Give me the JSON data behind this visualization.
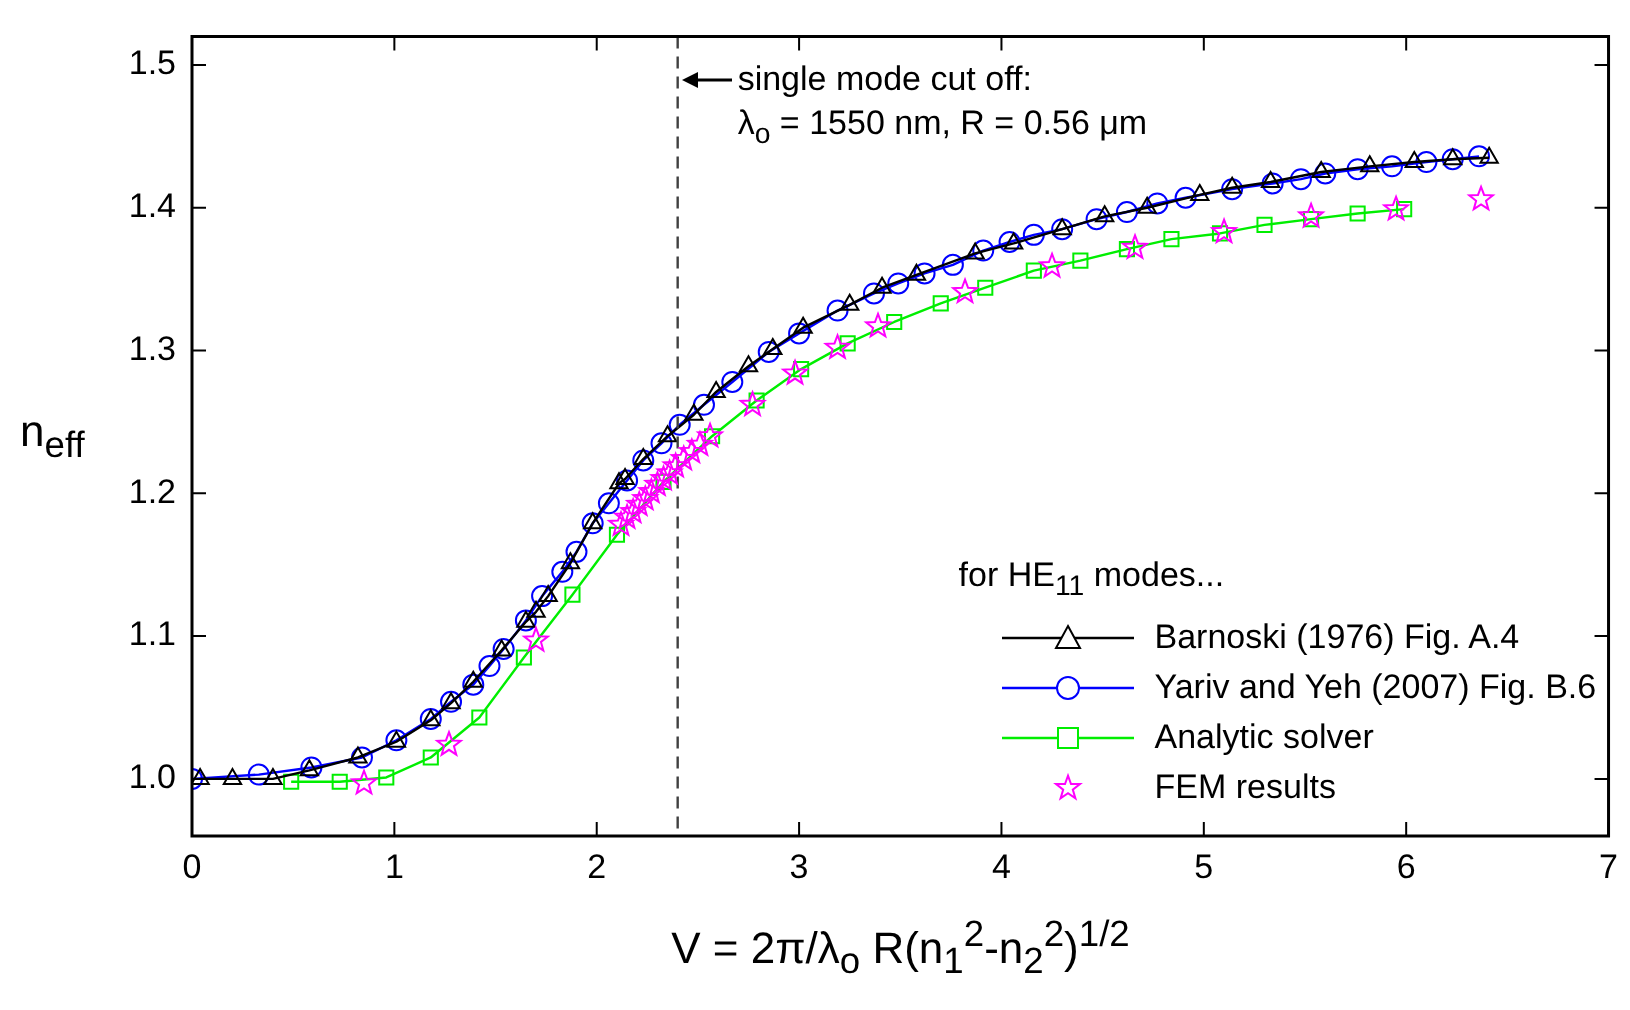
{
  "chart_data": {
    "type": "line",
    "xlabel": "V = 2π/λ$_{o}$ R(n$_{1}$$^{2}$-n$_{2}$$^{2}$)$^{1/2}$",
    "ylabel": "n$_{eff}$",
    "legend_title": "for HE$_{11}$ modes...",
    "xlim": [
      0,
      7
    ],
    "xticks": [
      0,
      1,
      2,
      3,
      4,
      5,
      6,
      7
    ],
    "ylim": [
      0.96,
      1.52
    ],
    "yticks": [
      {
        "value": 1,
        "label": "1.0"
      },
      1.1,
      1.2,
      1.3,
      1.4,
      1.5
    ],
    "grid": false,
    "legend": "bottom right",
    "line_style": "solid",
    "ref_lines": [
      {
        "axis": "x",
        "value": 2.4,
        "color": "#404040",
        "line_style": "dashed"
      }
    ],
    "annotations": [
      {
        "text": "single mode cut off:",
        "x": 2.4,
        "y": 1.49
      },
      {
        "text": "λ$_{o}$ = 1550 nm, R = 0.56 μm",
        "x": 2.4,
        "y": 1.457
      }
    ],
    "series": [
      {
        "name": "Barnoski (1976) Fig. A.4",
        "marker": "triangle",
        "color": "#000000",
        "x": [
          0.04,
          0.2,
          0.4,
          0.58,
          0.82,
          1.01,
          1.18,
          1.28,
          1.39,
          1.53,
          1.65,
          1.7,
          1.76,
          1.87,
          1.98,
          2.11,
          2.14,
          2.23,
          2.35,
          2.48,
          2.59,
          2.75,
          2.87,
          3.02,
          3.25,
          3.41,
          3.58,
          3.87,
          4.06,
          4.3,
          4.51,
          4.72,
          4.98,
          5.14,
          5.33,
          5.58,
          5.82,
          6.04,
          6.23,
          6.41
        ],
        "values": [
          1.0,
          1.0,
          1.0,
          1.006,
          1.015,
          1.026,
          1.041,
          1.053,
          1.068,
          1.09,
          1.11,
          1.117,
          1.128,
          1.151,
          1.179,
          1.207,
          1.21,
          1.224,
          1.24,
          1.255,
          1.271,
          1.289,
          1.301,
          1.316,
          1.332,
          1.344,
          1.353,
          1.368,
          1.375,
          1.385,
          1.394,
          1.4,
          1.409,
          1.414,
          1.418,
          1.425,
          1.429,
          1.432,
          1.434,
          1.435
        ]
      },
      {
        "name": "Yariv and Yeh (2007) Fig. B.6",
        "marker": "circle",
        "color": "#0000ff",
        "x": [
          0,
          0.33,
          0.59,
          0.84,
          1.01,
          1.18,
          1.28,
          1.39,
          1.47,
          1.54,
          1.65,
          1.73,
          1.83,
          1.9,
          1.98,
          2.06,
          2.15,
          2.23,
          2.32,
          2.41,
          2.53,
          2.67,
          2.85,
          3.0,
          3.19,
          3.37,
          3.49,
          3.62,
          3.76,
          3.91,
          4.04,
          4.16,
          4.3,
          4.47,
          4.62,
          4.77,
          4.91,
          5.14,
          5.34,
          5.48,
          5.6,
          5.76,
          5.93,
          6.1,
          6.23,
          6.36
        ],
        "values": [
          1.0,
          1.003,
          1.008,
          1.015,
          1.027,
          1.042,
          1.054,
          1.066,
          1.079,
          1.091,
          1.111,
          1.128,
          1.145,
          1.159,
          1.179,
          1.193,
          1.209,
          1.223,
          1.235,
          1.248,
          1.262,
          1.278,
          1.299,
          1.312,
          1.328,
          1.34,
          1.347,
          1.354,
          1.36,
          1.37,
          1.376,
          1.381,
          1.385,
          1.392,
          1.397,
          1.403,
          1.407,
          1.413,
          1.417,
          1.42,
          1.424,
          1.427,
          1.429,
          1.432,
          1.434,
          1.436
        ]
      },
      {
        "name": "Analytic solver",
        "marker": "square",
        "color": "#00ee00",
        "x": [
          0.49,
          0.73,
          0.96,
          1.18,
          1.42,
          1.64,
          1.88,
          2.1,
          2.33,
          2.57,
          2.79,
          3.01,
          3.24,
          3.47,
          3.7,
          3.92,
          4.16,
          4.39,
          4.62,
          4.84,
          5.08,
          5.3,
          5.53,
          5.76,
          5.99
        ],
        "values": [
          0.998,
          0.998,
          1.001,
          1.015,
          1.043,
          1.085,
          1.129,
          1.171,
          1.208,
          1.24,
          1.265,
          1.287,
          1.305,
          1.32,
          1.333,
          1.344,
          1.356,
          1.363,
          1.371,
          1.378,
          1.382,
          1.388,
          1.392,
          1.396,
          1.399
        ]
      },
      {
        "name": "FEM results",
        "type": "scatter",
        "marker": "star",
        "color": "#ff00ff",
        "x": [
          0.85,
          1.27,
          1.7,
          2.12,
          2.15,
          2.18,
          2.21,
          2.24,
          2.27,
          2.3,
          2.33,
          2.36,
          2.39,
          2.43,
          2.47,
          2.51,
          2.56,
          2.77,
          2.98,
          3.19,
          3.39,
          3.82,
          4.25,
          4.66,
          5.1,
          5.53,
          5.95,
          6.37
        ],
        "values": [
          0.997,
          1.024,
          1.097,
          1.178,
          1.183,
          1.187,
          1.192,
          1.196,
          1.201,
          1.206,
          1.21,
          1.214,
          1.219,
          1.224,
          1.229,
          1.234,
          1.24,
          1.262,
          1.284,
          1.302,
          1.317,
          1.341,
          1.359,
          1.372,
          1.383,
          1.394,
          1.399,
          1.406
        ]
      }
    ]
  }
}
